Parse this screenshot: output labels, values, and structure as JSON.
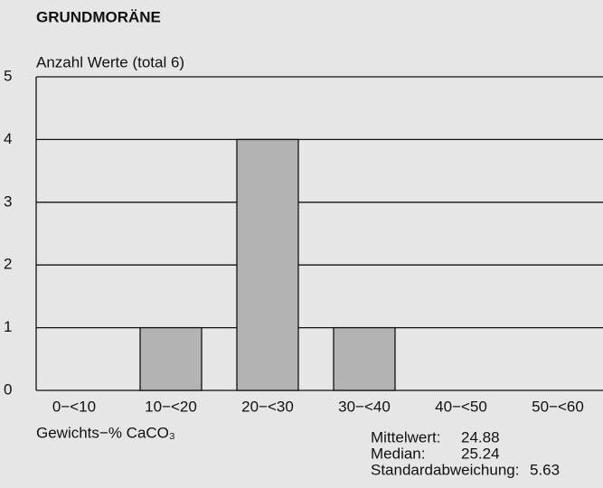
{
  "chart_data": {
    "type": "bar",
    "title": "GRUNDMORÄNE",
    "y_label": "Anzahl Werte (total 6)",
    "x_label": "Gewichts−% CaCO₃",
    "categories": [
      "0−<10",
      "10−<20",
      "20−<30",
      "30−<40",
      "40−<50",
      "50−<60"
    ],
    "values": [
      0,
      1,
      4,
      1,
      0,
      0
    ],
    "color": "#b3b3b3",
    "ylim": [
      0,
      5
    ],
    "yticks": [
      0,
      1,
      2,
      3,
      4,
      5
    ],
    "grid": true,
    "stats": [
      {
        "label": "Mittelwert:",
        "value": 24.88
      },
      {
        "label": "Median:",
        "value": 25.24
      },
      {
        "label": "Standardabweichung:",
        "value": 5.63
      }
    ]
  }
}
